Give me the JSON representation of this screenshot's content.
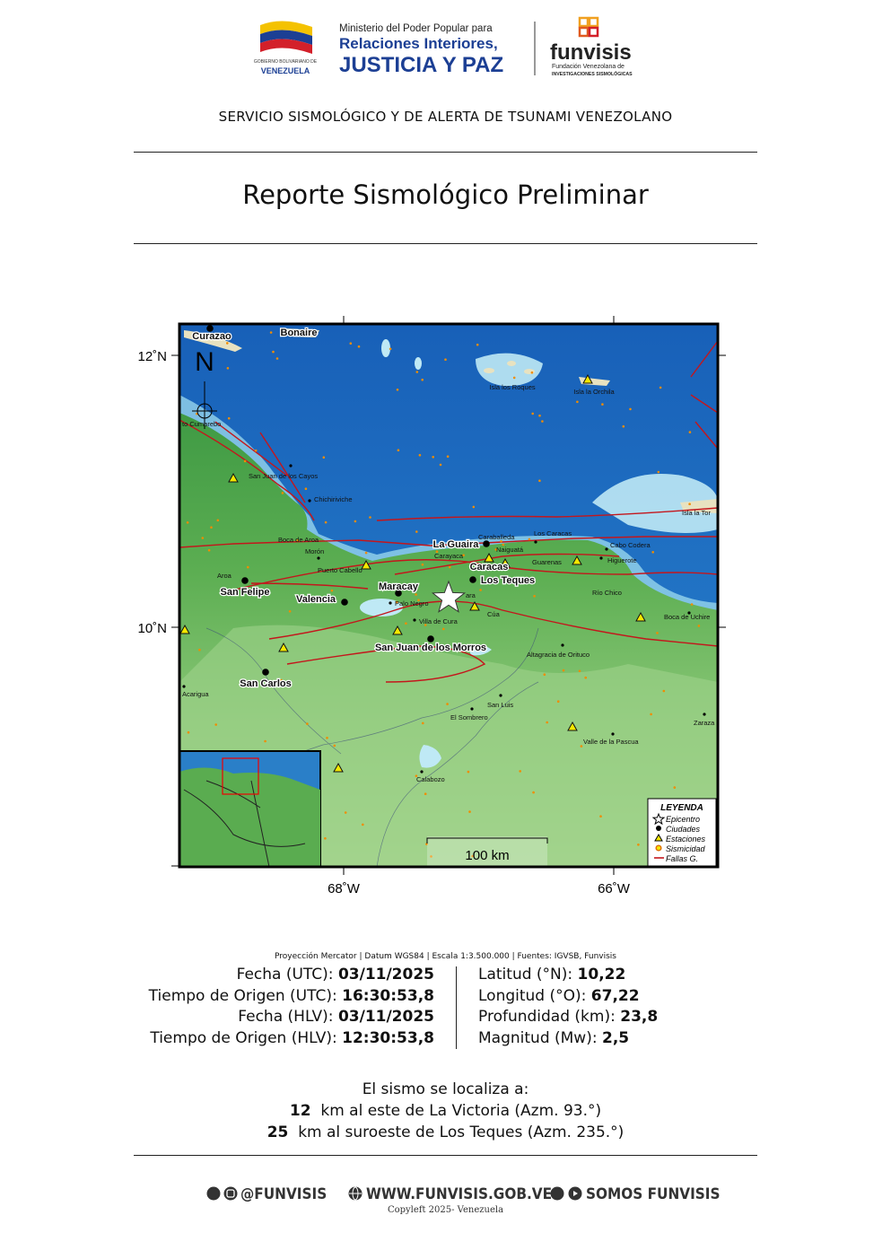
{
  "header": {
    "gov_label": "VENEZUELA",
    "ministry_line1": "Ministerio del Poder Popular para",
    "ministry_line2": "Relaciones Interiores,",
    "ministry_line3": "JUSTICIA Y PAZ",
    "funvisis": "funvisis",
    "funvisis_sub1": "Fundación Venezolana de",
    "funvisis_sub2": "INVESTIGACIONES SISMOLÓGICAS",
    "service": "SERVICIO SISMOLÓGICO Y DE ALERTA DE TSUNAMI VENEZOLANO"
  },
  "title": "Reporte Sismológico Preliminar",
  "map": {
    "north": "N",
    "lat_labels": [
      "12˚N",
      "10˚N"
    ],
    "lon_labels": [
      "68˚W",
      "66˚W"
    ],
    "scale": "100 km",
    "legend": {
      "title": "LEYENDA",
      "items": [
        "Epicentro",
        "Ciudades",
        "Estaciones",
        "Sismicidad",
        "Fallas G."
      ]
    },
    "places": [
      "Curazao",
      "Bonaire",
      "Isla los Roques",
      "Isla la Orchila",
      "to Cumarebo",
      "San Juan de los Cayos",
      "Chichiriviche",
      "Boca de Aroa",
      "Morón",
      "Puerto Cabello",
      "Aroa",
      "San Felipe",
      "Valencia",
      "Maracay",
      "Palo Negro",
      "La Guaira",
      "Carayaca",
      "Caraballeda",
      "Naiguatá",
      "Los Caracas",
      "Caracas",
      "Guarenas",
      "Los Teques",
      "ara",
      "Cúa",
      "Villa de Cura",
      "San Juan de los Morros",
      "Cabo Codera",
      "Higuerote",
      "Río Chico",
      "Boca de Uchire",
      "Isla la Tor",
      "Altagracia de Orituco",
      "San Carlos",
      "Acarigua",
      "San Luis",
      "El Sombrero",
      "Valle de la Pascua",
      "Zaraza",
      "Calabozo"
    ]
  },
  "info": {
    "caption": "Proyección Mercator | Datum WGS84 | Escala 1:3.500.000 | Fuentes: IGVSB, Funvisis",
    "left": [
      {
        "label": "Fecha (UTC):",
        "value": "03/11/2025"
      },
      {
        "label": "Tiempo de Origen (UTC):",
        "value": "16:30:53,8"
      },
      {
        "label": "Fecha (HLV):",
        "value": "03/11/2025"
      },
      {
        "label": "Tiempo de Origen (HLV):",
        "value": "12:30:53,8"
      }
    ],
    "right": [
      {
        "label": "Latitud (°N):",
        "value": "10,22"
      },
      {
        "label": "Longitud (°O):",
        "value": "67,22"
      },
      {
        "label": "Profundidad (km):",
        "value": "23,8"
      },
      {
        "label": "Magnitud (Mw):",
        "value": "2,5"
      }
    ]
  },
  "location": {
    "intro": "El sismo se localiza a:",
    "lines": [
      {
        "distance": "12",
        "text": "km al este de La Victoria (Azm. 93.°)"
      },
      {
        "distance": "25",
        "text": "km al suroeste de Los Teques (Azm. 235.°)"
      }
    ]
  },
  "footer": {
    "social": "@FUNVISIS",
    "web": "WWW.FUNVISIS.GOB.VE",
    "youtube": "SOMOS FUNVISIS",
    "copyleft": "Copyleft 2025- Venezuela"
  }
}
